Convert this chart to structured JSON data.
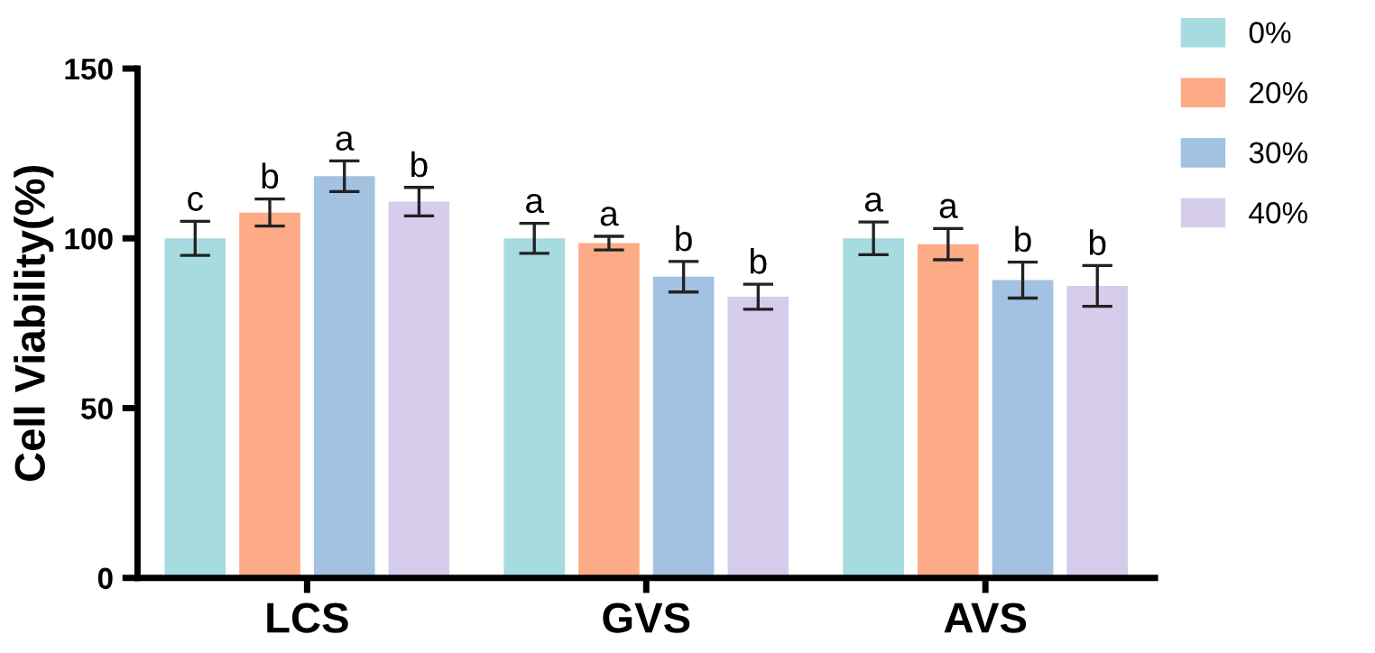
{
  "chart_data": {
    "type": "bar",
    "ylabel": "Cell Viability(%)",
    "categories": [
      "LCS",
      "GVS",
      "AVS"
    ],
    "series": [
      {
        "name": "0%",
        "color": "#a6dcdf",
        "values": [
          100,
          100,
          100
        ],
        "errors": [
          5,
          4.4,
          4.8
        ],
        "value_labels": [
          "c",
          "a",
          "a"
        ]
      },
      {
        "name": "20%",
        "color": "#fdab87",
        "values": [
          107.6,
          98.6,
          98.3
        ],
        "errors": [
          4,
          2,
          4.6
        ],
        "value_labels": [
          "b",
          "a",
          "a"
        ]
      },
      {
        "name": "30%",
        "color": "#a3c1e0",
        "values": [
          118.3,
          88.7,
          87.7
        ],
        "errors": [
          4.5,
          4.5,
          5.3
        ],
        "value_labels": [
          "a",
          "b",
          "b"
        ]
      },
      {
        "name": "40%",
        "color": "#d6cdec",
        "values": [
          110.8,
          82.8,
          86
        ],
        "errors": [
          4.2,
          3.7,
          6
        ],
        "value_labels": [
          "b",
          "b",
          "b"
        ]
      }
    ],
    "ylim": [
      0,
      150
    ],
    "yticks": [
      0,
      50,
      100,
      150
    ],
    "grid": false,
    "legend": "top right"
  }
}
